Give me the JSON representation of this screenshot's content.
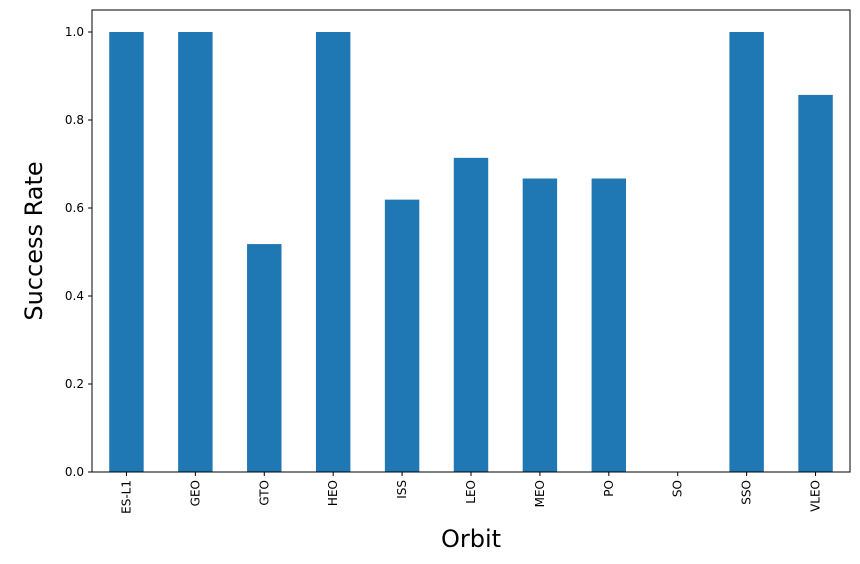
{
  "chart_data": {
    "type": "bar",
    "categories": [
      "ES-L1",
      "GEO",
      "GTO",
      "HEO",
      "ISS",
      "LEO",
      "MEO",
      "PO",
      "SO",
      "SSO",
      "VLEO"
    ],
    "values": [
      1.0,
      1.0,
      0.518,
      1.0,
      0.619,
      0.714,
      0.667,
      0.667,
      0.0,
      1.0,
      0.857
    ],
    "xlabel": "Orbit",
    "ylabel": "Success Rate",
    "ylim": [
      0,
      1.05
    ],
    "yticks": [
      0.0,
      0.2,
      0.4,
      0.6,
      0.8,
      1.0
    ],
    "ytick_labels": [
      "0.0",
      "0.2",
      "0.4",
      "0.6",
      "0.8",
      "1.0"
    ],
    "grid": false,
    "bar_color": "#1f77b4"
  }
}
